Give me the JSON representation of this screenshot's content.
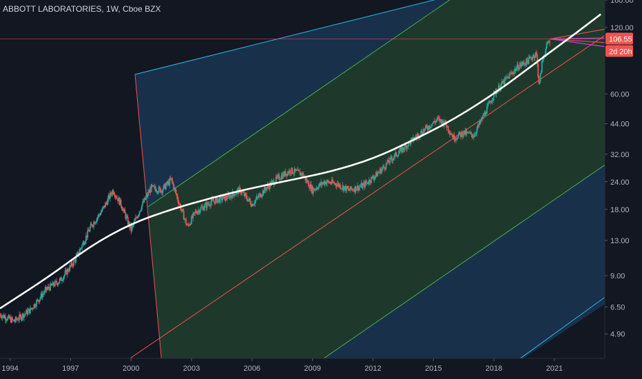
{
  "header": {
    "title": "ABBOTT LABORATORIES, 1W, Cboe BZX"
  },
  "badges": {
    "price": "106.55",
    "countdown": "2d 20h"
  },
  "colors": {
    "background": "#131722",
    "bull": "#26a69a",
    "bear": "#ef5350",
    "trend_curve": "#ffffff",
    "fan_inner": "#1f3a29",
    "fan_outer": "#1c3a5a",
    "channel_line": "#ef5350",
    "cyan_line": "#22c1e6",
    "green_line": "#4caf50",
    "price_badge": "#ef5350",
    "projection": "#e040fb"
  },
  "chart_data": {
    "type": "candlestick",
    "title": "ABBOTT LABORATORIES, 1W, Cboe BZX",
    "x_axis": {
      "labels": [
        "1994",
        "1997",
        "2000",
        "2003",
        "2006",
        "2009",
        "2012",
        "2015",
        "2018",
        "2021"
      ],
      "range": [
        1993.5,
        2023.5
      ]
    },
    "y_axis": {
      "scale": "log",
      "labels": [
        "160.00",
        "120.00",
        "60.00",
        "44.00",
        "32.00",
        "24.00",
        "18.00",
        "13.00",
        "9.00",
        "6.50",
        "4.90"
      ],
      "range": [
        3.8,
        160
      ]
    },
    "price_path": [
      {
        "x": 1993.5,
        "y": 6.0
      },
      {
        "x": 1994.2,
        "y": 5.6
      },
      {
        "x": 1995.0,
        "y": 6.3
      },
      {
        "x": 1995.8,
        "y": 7.8
      },
      {
        "x": 1996.5,
        "y": 8.6
      },
      {
        "x": 1997.2,
        "y": 10.5
      },
      {
        "x": 1998.0,
        "y": 15.0
      },
      {
        "x": 1998.6,
        "y": 18.0
      },
      {
        "x": 1999.1,
        "y": 22.0
      },
      {
        "x": 1999.5,
        "y": 19.0
      },
      {
        "x": 2000.0,
        "y": 14.5
      },
      {
        "x": 2000.5,
        "y": 18.5
      },
      {
        "x": 2001.0,
        "y": 22.5
      },
      {
        "x": 2001.5,
        "y": 22.0
      },
      {
        "x": 2002.0,
        "y": 24.5
      },
      {
        "x": 2002.4,
        "y": 19.0
      },
      {
        "x": 2002.8,
        "y": 15.0
      },
      {
        "x": 2003.2,
        "y": 17.5
      },
      {
        "x": 2004.0,
        "y": 19.5
      },
      {
        "x": 2004.8,
        "y": 20.5
      },
      {
        "x": 2005.4,
        "y": 22.0
      },
      {
        "x": 2006.0,
        "y": 19.0
      },
      {
        "x": 2006.7,
        "y": 22.5
      },
      {
        "x": 2007.3,
        "y": 25.0
      },
      {
        "x": 2007.9,
        "y": 27.0
      },
      {
        "x": 2008.5,
        "y": 26.0
      },
      {
        "x": 2009.0,
        "y": 22.0
      },
      {
        "x": 2009.6,
        "y": 24.0
      },
      {
        "x": 2010.2,
        "y": 23.5
      },
      {
        "x": 2010.8,
        "y": 22.0
      },
      {
        "x": 2011.5,
        "y": 23.0
      },
      {
        "x": 2012.2,
        "y": 26.0
      },
      {
        "x": 2013.0,
        "y": 31.0
      },
      {
        "x": 2013.8,
        "y": 36.0
      },
      {
        "x": 2014.5,
        "y": 41.0
      },
      {
        "x": 2015.2,
        "y": 46.0
      },
      {
        "x": 2015.6,
        "y": 44.0
      },
      {
        "x": 2016.0,
        "y": 38.0
      },
      {
        "x": 2016.5,
        "y": 40.0
      },
      {
        "x": 2017.0,
        "y": 39.0
      },
      {
        "x": 2017.5,
        "y": 48.0
      },
      {
        "x": 2018.0,
        "y": 60.0
      },
      {
        "x": 2018.6,
        "y": 70.0
      },
      {
        "x": 2019.2,
        "y": 80.0
      },
      {
        "x": 2019.7,
        "y": 85.0
      },
      {
        "x": 2020.1,
        "y": 92.0
      },
      {
        "x": 2020.25,
        "y": 65.0
      },
      {
        "x": 2020.4,
        "y": 85.0
      },
      {
        "x": 2020.6,
        "y": 98.0
      },
      {
        "x": 2020.8,
        "y": 106.55
      }
    ],
    "trend_curve": [
      {
        "x": 1993.5,
        "y": 6.4
      },
      {
        "x": 1996.0,
        "y": 9.0
      },
      {
        "x": 1998.0,
        "y": 12.3
      },
      {
        "x": 2000.0,
        "y": 15.5
      },
      {
        "x": 2002.0,
        "y": 18.0
      },
      {
        "x": 2004.0,
        "y": 20.3
      },
      {
        "x": 2006.0,
        "y": 22.5
      },
      {
        "x": 2008.0,
        "y": 24.5
      },
      {
        "x": 2010.0,
        "y": 26.8
      },
      {
        "x": 2012.0,
        "y": 30.5
      },
      {
        "x": 2014.0,
        "y": 37.0
      },
      {
        "x": 2016.0,
        "y": 46.0
      },
      {
        "x": 2018.0,
        "y": 60.0
      },
      {
        "x": 2020.0,
        "y": 82.0
      },
      {
        "x": 2021.0,
        "y": 96.0
      },
      {
        "x": 2022.0,
        "y": 112.0
      },
      {
        "x": 2023.3,
        "y": 138.0
      }
    ],
    "last_price": 106.55
  }
}
